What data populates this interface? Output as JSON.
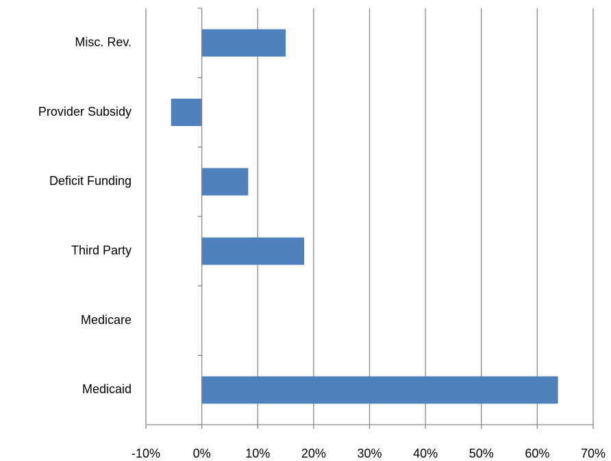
{
  "chart_data": {
    "type": "bar",
    "orientation": "horizontal",
    "title": "",
    "xlabel": "",
    "ylabel": "",
    "categories": [
      "Misc. Rev.",
      "Provider Subsidy",
      "Deficit Funding",
      "Third Party",
      "Medicare",
      "Medicaid"
    ],
    "values": [
      0.15,
      -0.055,
      0.083,
      0.183,
      0,
      0.637
    ],
    "xlim": [
      -0.1,
      0.7
    ],
    "x_ticks": [
      -0.1,
      0,
      0.1,
      0.2,
      0.3,
      0.4,
      0.5,
      0.6,
      0.7
    ],
    "x_tick_labels": [
      "-10%",
      "0%",
      "10%",
      "20%",
      "30%",
      "40%",
      "50%",
      "60%",
      "70%"
    ],
    "vertical_grid": true,
    "legend": "none",
    "bar_color": "#4f81bd"
  }
}
